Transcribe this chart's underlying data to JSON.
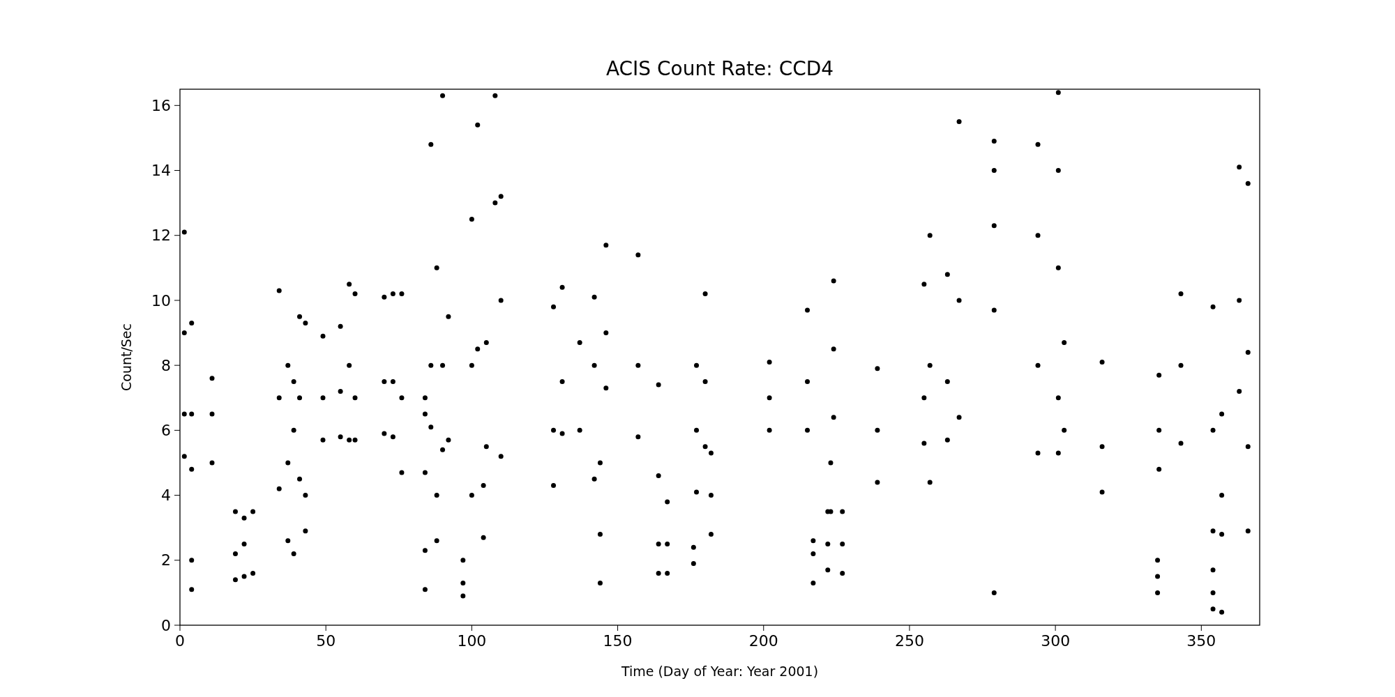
{
  "chart_data": {
    "type": "scatter",
    "title": "ACIS Count Rate: CCD4",
    "xlabel": "Time (Day of Year: Year 2001)",
    "ylabel": "Count/Sec",
    "x": [
      1.5,
      1.5,
      1.5,
      1.5,
      4,
      4,
      4,
      4,
      4,
      11,
      11,
      11,
      19,
      19,
      19,
      22,
      22,
      22,
      25,
      25,
      34,
      34,
      34,
      37,
      37,
      37,
      39,
      39,
      39,
      41,
      41,
      41,
      43,
      43,
      43,
      49,
      49,
      49,
      55,
      55,
      55,
      58,
      58,
      58,
      60,
      60,
      60,
      70,
      70,
      70,
      73,
      73,
      73,
      76,
      76,
      76,
      84,
      84,
      84,
      84,
      84,
      86,
      86,
      86,
      88,
      88,
      88,
      90,
      90,
      90,
      92,
      92,
      97,
      97,
      97,
      100,
      100,
      100,
      102,
      102,
      104,
      104,
      105,
      105,
      108,
      108,
      110,
      110,
      110,
      128,
      128,
      128,
      131,
      131,
      131,
      137,
      137,
      142,
      142,
      142,
      144,
      144,
      144,
      146,
      146,
      146,
      157,
      157,
      157,
      164,
      164,
      164,
      164,
      167,
      167,
      167,
      176,
      176,
      177,
      177,
      177,
      180,
      180,
      180,
      182,
      182,
      182,
      202,
      202,
      202,
      215,
      215,
      215,
      217,
      217,
      217,
      222,
      222,
      222,
      223,
      223,
      224,
      224,
      224,
      227,
      227,
      227,
      239,
      239,
      239,
      255,
      255,
      255,
      257,
      257,
      257,
      263,
      263,
      263,
      267,
      267,
      267,
      279,
      279,
      279,
      279,
      279,
      294,
      294,
      294,
      294,
      301,
      301,
      301,
      301,
      301,
      303,
      303,
      316,
      316,
      316,
      335,
      335,
      335,
      335.5,
      335.5,
      335.5,
      343,
      343,
      343,
      354,
      354,
      354,
      354,
      354,
      354,
      357,
      357,
      357,
      357,
      363,
      363,
      363,
      366,
      366,
      366,
      366
    ],
    "values": [
      5.2,
      6.5,
      9,
      12.1,
      1.1,
      2,
      4.8,
      6.5,
      9.3,
      5,
      6.5,
      7.6,
      1.4,
      2.2,
      3.5,
      1.5,
      2.5,
      3.3,
      1.6,
      3.5,
      4.2,
      7,
      10.3,
      2.6,
      5,
      8,
      2.2,
      6,
      7.5,
      4.5,
      7,
      9.5,
      2.9,
      4,
      9.3,
      5.7,
      7,
      8.9,
      5.8,
      7.2,
      9.2,
      5.7,
      8,
      10.5,
      5.7,
      7,
      10.2,
      5.9,
      7.5,
      10.1,
      5.8,
      7.5,
      10.2,
      4.7,
      7,
      10.2,
      1.1,
      2.3,
      4.7,
      6.5,
      7,
      6.1,
      8,
      14.8,
      2.6,
      4,
      11,
      5.4,
      8,
      16.3,
      5.7,
      9.5,
      0.9,
      1.3,
      2,
      4,
      8,
      12.5,
      8.5,
      15.4,
      2.7,
      4.3,
      5.5,
      8.7,
      13,
      16.3,
      5.2,
      10,
      13.2,
      4.3,
      6,
      9.8,
      5.9,
      7.5,
      10.4,
      6,
      8.7,
      4.5,
      8,
      10.1,
      1.3,
      2.8,
      5,
      7.3,
      9,
      11.7,
      5.8,
      8,
      11.4,
      1.6,
      2.5,
      4.6,
      7.4,
      1.6,
      2.5,
      3.8,
      1.9,
      2.4,
      4.1,
      6,
      8,
      5.5,
      7.5,
      10.2,
      2.8,
      4,
      5.3,
      6,
      7,
      8.1,
      6,
      7.5,
      9.7,
      1.3,
      2.2,
      2.6,
      1.7,
      2.5,
      3.5,
      3.5,
      5,
      6.4,
      8.5,
      10.6,
      1.6,
      2.5,
      3.5,
      4.4,
      6,
      7.9,
      5.6,
      7,
      10.5,
      4.4,
      8,
      12,
      5.7,
      7.5,
      10.8,
      6.4,
      10,
      15.5,
      1,
      9.7,
      12.3,
      14,
      14.9,
      5.3,
      8,
      12,
      14.8,
      5.3,
      7,
      11,
      14,
      16.4,
      6,
      8.7,
      4.1,
      5.5,
      8.1,
      1,
      1.5,
      2,
      4.8,
      6,
      7.7,
      5.6,
      8,
      10.2,
      0.5,
      1,
      1.7,
      2.9,
      6,
      9.8,
      0.4,
      2.8,
      4,
      6.5,
      7.2,
      10,
      14.1,
      2.9,
      5.5,
      8.4,
      13.6
    ],
    "color": "#000000",
    "marker": "circle",
    "xlim": [
      0,
      370
    ],
    "xticks": [
      0,
      50,
      100,
      150,
      200,
      250,
      300,
      350
    ],
    "ylim": [
      0,
      16.5
    ],
    "yticks": [
      0,
      2,
      4,
      6,
      8,
      10,
      12,
      14,
      16
    ],
    "grid": false
  }
}
